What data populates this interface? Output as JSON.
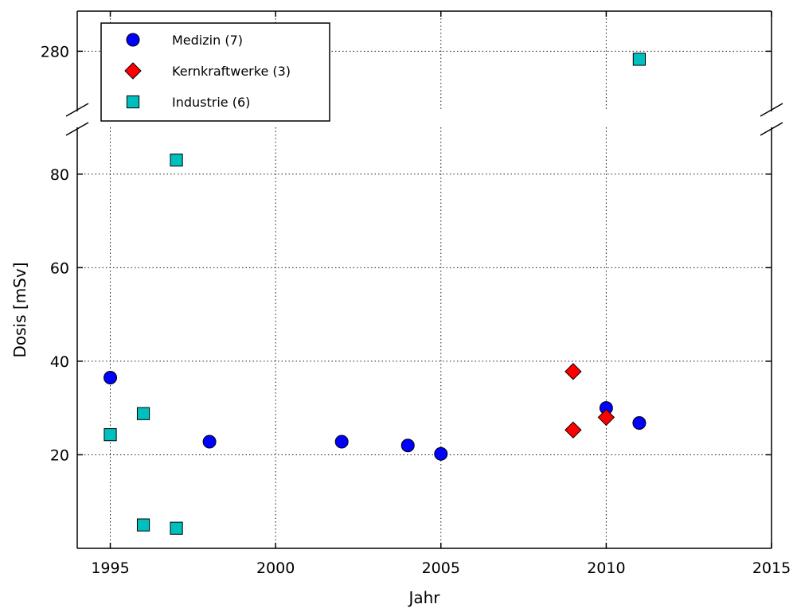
{
  "chart_data": {
    "type": "scatter",
    "xlabel": "Jahr",
    "ylabel": "Dosis [mSv]",
    "xlim": [
      1994,
      2015
    ],
    "x_ticks": [
      1995,
      2000,
      2005,
      2010,
      2015
    ],
    "broken_y_axis": true,
    "y_segments": [
      {
        "ylim": [
          0,
          90
        ],
        "ticks": [
          20,
          40,
          60,
          80
        ]
      },
      {
        "ylim": [
          265,
          290
        ],
        "ticks": [
          280
        ]
      }
    ],
    "grid": true,
    "legend_position": "top-left",
    "series": [
      {
        "name": "Medizin (7)",
        "marker": "circle",
        "color": "#0000ff",
        "points": [
          {
            "x": 1995,
            "y": 36.5
          },
          {
            "x": 1998,
            "y": 22.8
          },
          {
            "x": 2002,
            "y": 22.8
          },
          {
            "x": 2004,
            "y": 22.0
          },
          {
            "x": 2005,
            "y": 20.2
          },
          {
            "x": 2010,
            "y": 30.0
          },
          {
            "x": 2011,
            "y": 26.8
          }
        ]
      },
      {
        "name": "Kernkraftwerke (3)",
        "marker": "diamond",
        "color": "#ff0000",
        "points": [
          {
            "x": 2009,
            "y": 37.8
          },
          {
            "x": 2009,
            "y": 25.3
          },
          {
            "x": 2010,
            "y": 28.0
          }
        ]
      },
      {
        "name": "Industrie (6)",
        "marker": "square",
        "color": "#00bfbf",
        "points": [
          {
            "x": 1995,
            "y": 24.3
          },
          {
            "x": 1996,
            "y": 28.8
          },
          {
            "x": 1996,
            "y": 5.0
          },
          {
            "x": 1997,
            "y": 83.0
          },
          {
            "x": 1997,
            "y": 4.3
          },
          {
            "x": 2011,
            "y": 278
          }
        ]
      }
    ]
  }
}
